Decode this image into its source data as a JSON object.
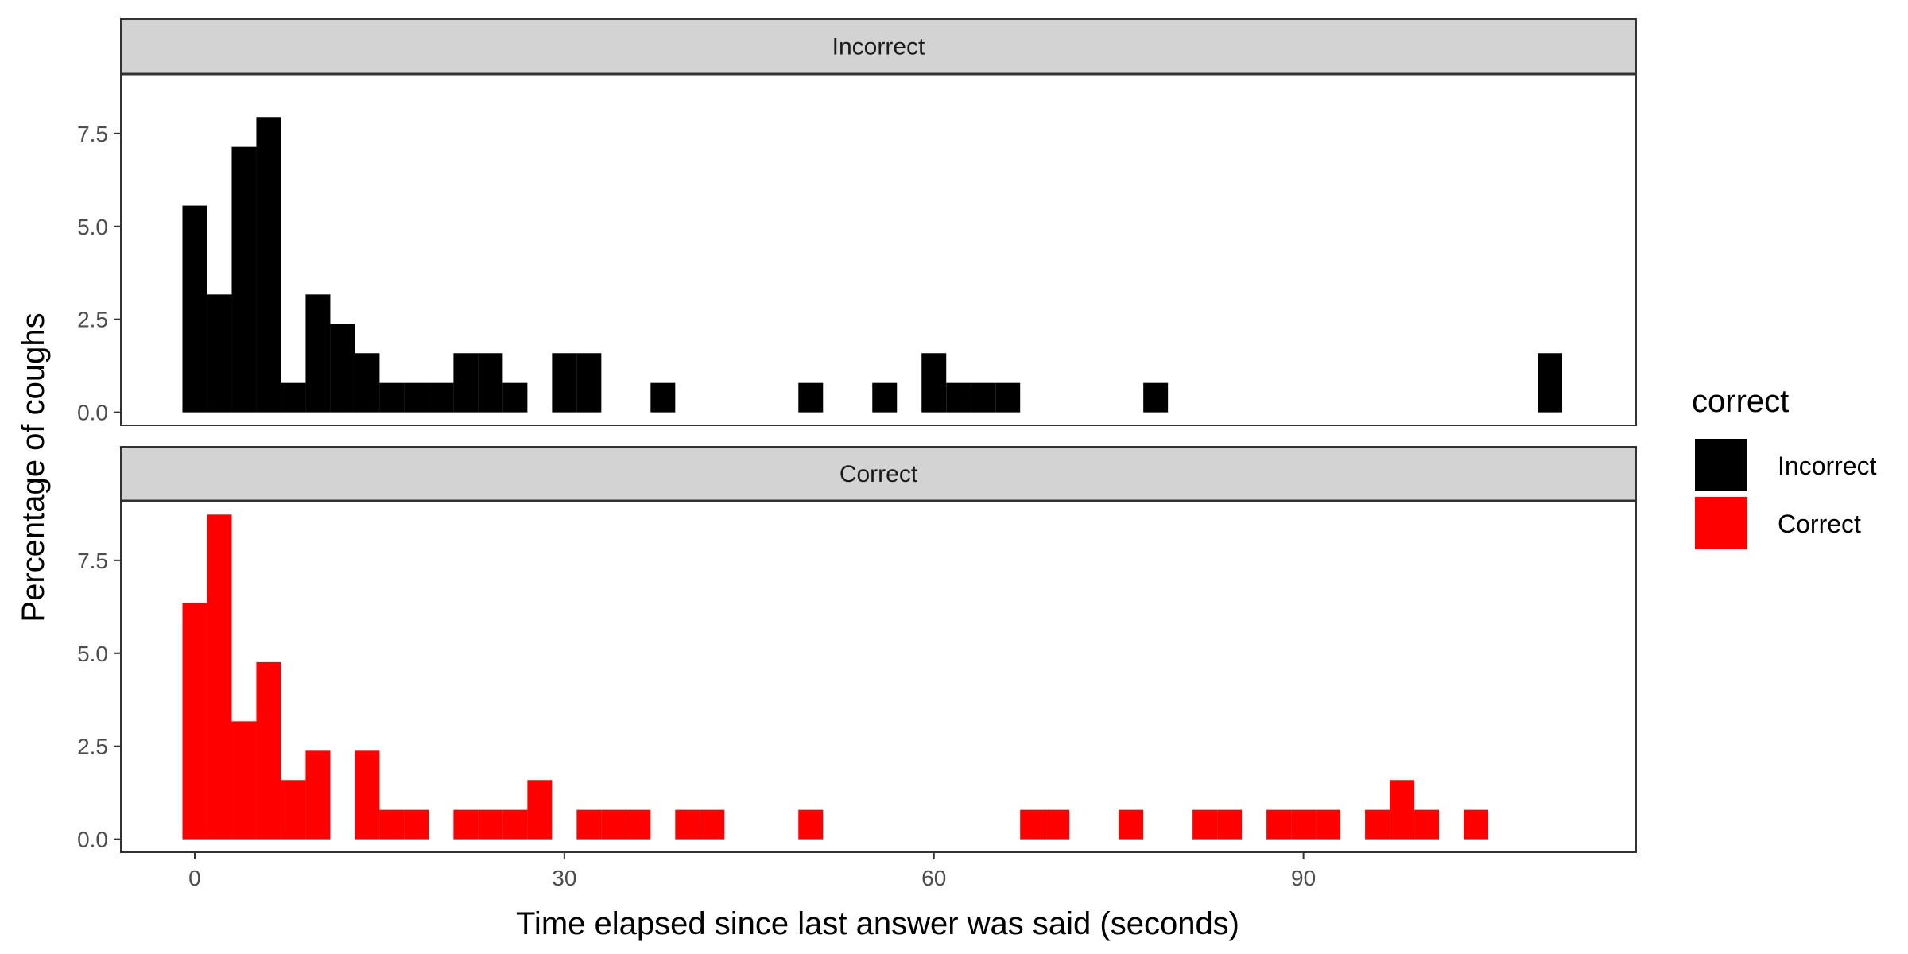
{
  "chart_data": {
    "type": "bar",
    "subtype": "faceted-histogram",
    "xlabel": "Time elapsed since last answer was said (seconds)",
    "ylabel": "Percentage of coughs",
    "x_ticks": [
      0,
      30,
      60,
      90
    ],
    "y_ticks": [
      0.0,
      2.5,
      5.0,
      7.5
    ],
    "y_tick_labels": [
      "0.0",
      "2.5",
      "5.0",
      "7.5"
    ],
    "xlim": [
      -6,
      117
    ],
    "ylim": [
      -0.35,
      9.1
    ],
    "bin_width": 2,
    "grid": false,
    "legend": {
      "title": "correct",
      "placement": "right",
      "entries": [
        {
          "label": "Incorrect",
          "color": "#000000"
        },
        {
          "label": "Correct",
          "color": "#ff0000"
        }
      ]
    },
    "panels": [
      {
        "strip": "Incorrect",
        "color": "#000000",
        "bins": [
          {
            "x": 0,
            "y": 5.56
          },
          {
            "x": 2,
            "y": 3.17
          },
          {
            "x": 4,
            "y": 7.14
          },
          {
            "x": 6,
            "y": 7.94
          },
          {
            "x": 8,
            "y": 0.79
          },
          {
            "x": 10,
            "y": 3.17
          },
          {
            "x": 12,
            "y": 2.38
          },
          {
            "x": 14,
            "y": 1.59
          },
          {
            "x": 16,
            "y": 0.79
          },
          {
            "x": 18,
            "y": 0.79
          },
          {
            "x": 20,
            "y": 0.79
          },
          {
            "x": 22,
            "y": 1.59
          },
          {
            "x": 24,
            "y": 1.59
          },
          {
            "x": 26,
            "y": 0.79
          },
          {
            "x": 30,
            "y": 1.59
          },
          {
            "x": 32,
            "y": 1.59
          },
          {
            "x": 38,
            "y": 0.79
          },
          {
            "x": 50,
            "y": 0.79
          },
          {
            "x": 56,
            "y": 0.79
          },
          {
            "x": 60,
            "y": 1.59
          },
          {
            "x": 62,
            "y": 0.79
          },
          {
            "x": 64,
            "y": 0.79
          },
          {
            "x": 66,
            "y": 0.79
          },
          {
            "x": 78,
            "y": 0.79
          },
          {
            "x": 110,
            "y": 1.59
          }
        ]
      },
      {
        "strip": "Correct",
        "color": "#ff0000",
        "bins": [
          {
            "x": 0,
            "y": 6.35
          },
          {
            "x": 2,
            "y": 8.73
          },
          {
            "x": 4,
            "y": 3.17
          },
          {
            "x": 6,
            "y": 4.76
          },
          {
            "x": 8,
            "y": 1.59
          },
          {
            "x": 10,
            "y": 2.38
          },
          {
            "x": 14,
            "y": 2.38
          },
          {
            "x": 16,
            "y": 0.79
          },
          {
            "x": 18,
            "y": 0.79
          },
          {
            "x": 22,
            "y": 0.79
          },
          {
            "x": 24,
            "y": 0.79
          },
          {
            "x": 26,
            "y": 0.79
          },
          {
            "x": 28,
            "y": 1.59
          },
          {
            "x": 32,
            "y": 0.79
          },
          {
            "x": 34,
            "y": 0.79
          },
          {
            "x": 36,
            "y": 0.79
          },
          {
            "x": 40,
            "y": 0.79
          },
          {
            "x": 42,
            "y": 0.79
          },
          {
            "x": 50,
            "y": 0.79
          },
          {
            "x": 68,
            "y": 0.79
          },
          {
            "x": 70,
            "y": 0.79
          },
          {
            "x": 76,
            "y": 0.79
          },
          {
            "x": 82,
            "y": 0.79
          },
          {
            "x": 84,
            "y": 0.79
          },
          {
            "x": 88,
            "y": 0.79
          },
          {
            "x": 90,
            "y": 0.79
          },
          {
            "x": 92,
            "y": 0.79
          },
          {
            "x": 96,
            "y": 0.79
          },
          {
            "x": 98,
            "y": 1.59
          },
          {
            "x": 100,
            "y": 0.79
          },
          {
            "x": 104,
            "y": 0.79
          }
        ]
      }
    ]
  }
}
